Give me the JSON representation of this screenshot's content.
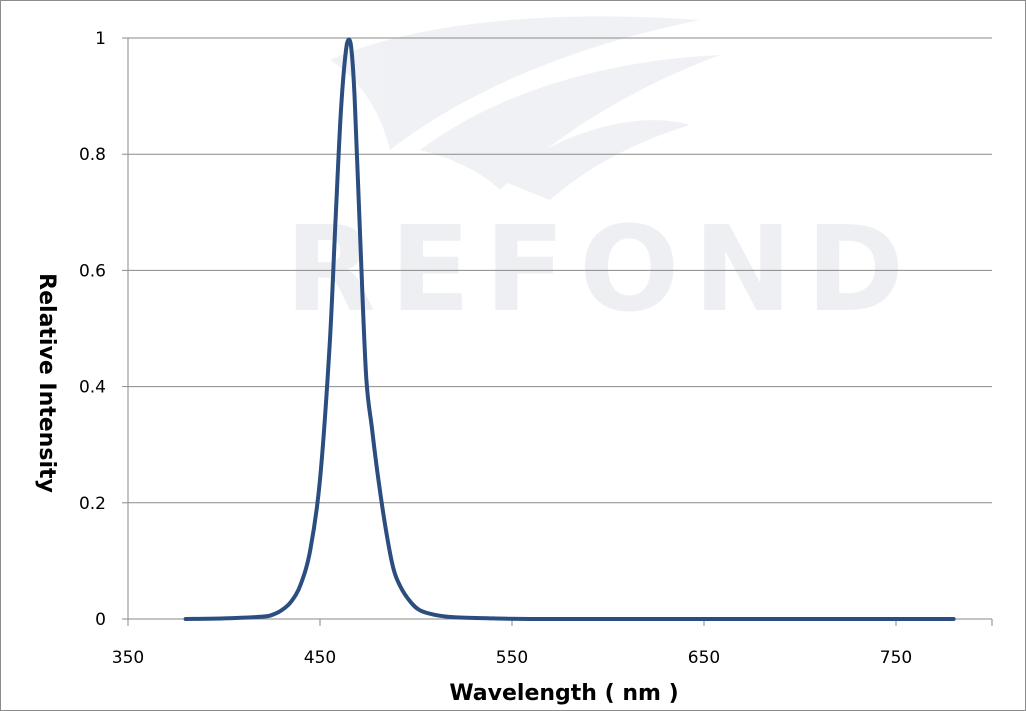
{
  "chart_data": {
    "type": "line",
    "title": "",
    "xlabel": "Wavelength ( nm )",
    "ylabel": "Relative  Intensity",
    "xlim": [
      350,
      800
    ],
    "ylim": [
      0,
      1
    ],
    "xticks": [
      350,
      450,
      550,
      650,
      750
    ],
    "yticks": [
      0,
      0.2,
      0.4,
      0.6,
      0.8,
      1
    ],
    "ytick_labels": [
      "0",
      "0.2",
      "0.4",
      "0.6",
      "0.8",
      "1"
    ],
    "grid": "horizontal",
    "legend": "none",
    "series": [
      {
        "color": "#2b4d80",
        "x": [
          380,
          400,
          420,
          425,
          430,
          435,
          440,
          445,
          450,
          455,
          458,
          461,
          464,
          466,
          468,
          471,
          474,
          477,
          480,
          484,
          488,
          492,
          497,
          502,
          510,
          520,
          540,
          560,
          600,
          650,
          700,
          750,
          780
        ],
        "y": [
          0,
          0.001,
          0.004,
          0.007,
          0.015,
          0.03,
          0.06,
          0.12,
          0.24,
          0.47,
          0.68,
          0.88,
          0.99,
          0.99,
          0.9,
          0.65,
          0.42,
          0.33,
          0.25,
          0.16,
          0.09,
          0.055,
          0.03,
          0.015,
          0.007,
          0.003,
          0.001,
          0,
          0,
          0,
          0,
          0,
          0
        ]
      }
    ]
  },
  "watermark": {
    "text": "REFOND",
    "color": "#dfe3ea"
  }
}
